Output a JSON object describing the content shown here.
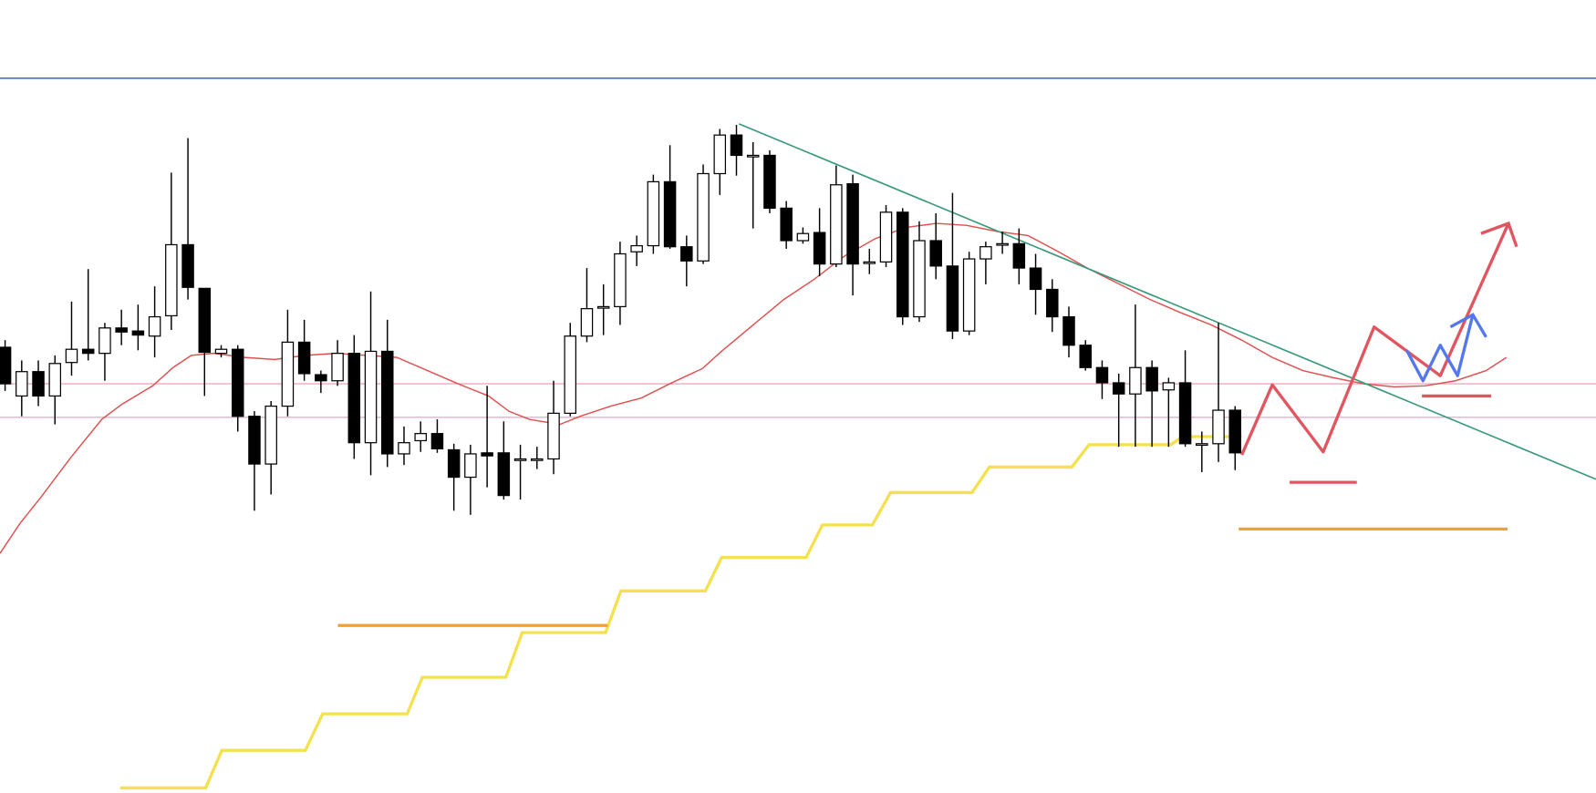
{
  "chart_data": {
    "type": "candlestick",
    "open": [
      439,
      391,
      415,
      391,
      424,
      437,
      433,
      458,
      455,
      450,
      470,
      540,
      497,
      433,
      437,
      371,
      324,
      381,
      444,
      412,
      406,
      433,
      345,
      435,
      334,
      347,
      354,
      338,
      311,
      335,
      335,
      329,
      329,
      329,
      374,
      450,
      479,
      479,
      533,
      539,
      602,
      538,
      524,
      610,
      648,
      628,
      628,
      576,
      544,
      552,
      521,
      600,
      523,
      523,
      572,
      469,
      544,
      519,
      455,
      526,
      541,
      541,
      517,
      496,
      469,
      441,
      419,
      404,
      393,
      419,
      397,
      404,
      344,
      344,
      377
    ],
    "high": [
      446,
      426,
      426,
      431,
      484,
      516,
      463,
      476,
      481,
      499,
      611,
      645,
      497,
      441,
      441,
      376,
      386,
      476,
      466,
      416,
      446,
      451,
      494,
      466,
      361,
      366,
      368,
      344,
      343,
      401,
      366,
      343,
      341,
      406,
      463,
      517,
      501,
      543,
      549,
      609,
      638,
      549,
      619,
      654,
      658,
      641,
      633,
      583,
      557,
      576,
      618,
      609,
      536,
      579,
      576,
      563,
      571,
      591,
      533,
      543,
      553,
      556,
      531,
      506,
      479,
      446,
      426,
      413,
      481,
      426,
      409,
      436,
      356,
      463,
      381
    ],
    "low": [
      396,
      371,
      381,
      363,
      411,
      426,
      406,
      441,
      436,
      429,
      456,
      486,
      391,
      429,
      356,
      278,
      294,
      371,
      406,
      394,
      401,
      329,
      313,
      321,
      323,
      336,
      335,
      278,
      274,
      301,
      289,
      289,
      319,
      314,
      371,
      444,
      451,
      461,
      519,
      531,
      536,
      499,
      521,
      589,
      608,
      556,
      571,
      536,
      541,
      509,
      518,
      490,
      511,
      518,
      461,
      464,
      506,
      447,
      451,
      501,
      531,
      501,
      471,
      454,
      429,
      416,
      388,
      341,
      341,
      341,
      341,
      341,
      316,
      326,
      318
    ],
    "close": [
      403,
      415,
      391,
      423,
      437,
      433,
      458,
      454,
      451,
      469,
      540,
      498,
      434,
      437,
      371,
      324,
      381,
      444,
      413,
      406,
      433,
      345,
      435,
      334,
      345,
      354,
      339,
      311,
      334,
      332,
      293,
      329,
      329,
      374,
      450,
      477,
      479,
      531,
      539,
      602,
      538,
      524,
      610,
      648,
      628,
      628,
      576,
      544,
      551,
      521,
      599,
      521,
      523,
      572,
      469,
      544,
      519,
      455,
      526,
      538,
      541,
      517,
      496,
      469,
      441,
      419,
      404,
      393,
      419,
      396,
      404,
      344,
      344,
      377,
      335
    ],
    "ylim": [
      0,
      781
    ],
    "up_color": "#ffffff",
    "down_color": "#000000"
  }
}
